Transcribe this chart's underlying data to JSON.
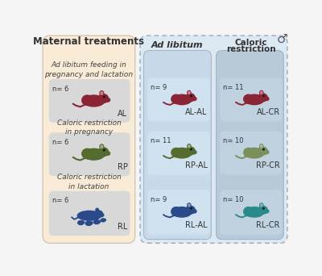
{
  "title": "Maternal treatments",
  "background_color": "#f5f5f5",
  "left_panel_bg": "#faebd7",
  "right_panel_bg": "#dce8f2",
  "cell_bg_left": "#d8d8d8",
  "cell_bg_al": "#c8d8e8",
  "cell_bg_cr": "#b8ccd8",
  "header_al": "Ad libitum",
  "header_cr": "Caloric\nrestriction",
  "male_symbol": "♂",
  "rows": [
    {
      "label_left": "Ad libitum feeding in\npregnancy and lactation",
      "n_left": "n= 6",
      "name_left": "AL",
      "color": "#8b2535",
      "cr_color": "#8b2535",
      "n_al": "n= 9",
      "name_al": "AL-AL",
      "n_cr": "n= 11",
      "name_cr": "AL-CR",
      "mouse_type": "normal"
    },
    {
      "label_left": "Caloric restriction\nin pregnancy",
      "n_left": "n= 6",
      "name_left": "RP",
      "color": "#556b2f",
      "cr_color": "#7a8f5a",
      "n_al": "n= 11",
      "name_al": "RP-AL",
      "n_cr": "n= 10",
      "name_cr": "RP-CR",
      "mouse_type": "normal"
    },
    {
      "label_left": "Caloric restriction\nin lactation",
      "n_left": "n= 6",
      "name_left": "RL",
      "color": "#2a4a8a",
      "cr_color": "#2a8a8a",
      "n_al": "n= 9",
      "name_al": "RL-AL",
      "n_cr": "n= 10",
      "name_cr": "RL-CR",
      "mouse_type": "lactation"
    }
  ]
}
